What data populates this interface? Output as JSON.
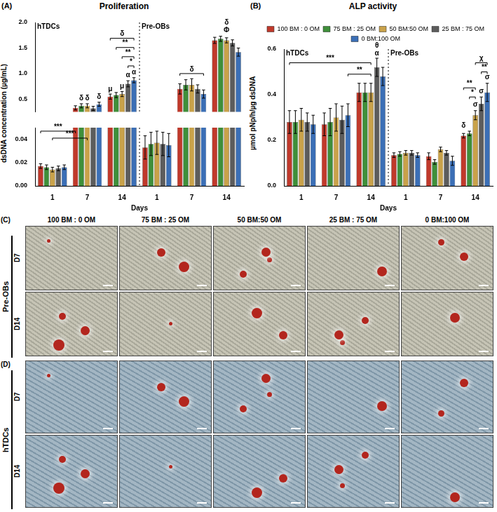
{
  "chart_data": [
    {
      "panel": "(A)",
      "type": "bar",
      "title": "Proliferation",
      "y_label": "dsDNA concentration (µg/mL)",
      "x_label": "Days",
      "groups": [
        "hTDCs",
        "Pre-OBs"
      ],
      "categories": [
        "1",
        "7",
        "14",
        "1",
        "7",
        "14"
      ],
      "y_segments": [
        {
          "ylim": [
            0.25,
            2.0
          ],
          "yticks": [
            0.5,
            {
              "value": 1,
              "label": "1.0"
            },
            1.5,
            {
              "value": 2,
              "label": "2.0"
            }
          ]
        },
        {
          "ylim": [
            0,
            0.05
          ],
          "yticks": [
            {
              "value": 0,
              "label": "0.00"
            },
            0.02,
            0.04
          ]
        }
      ],
      "series": [
        {
          "color": "#c0392b",
          "values": [
            0.017,
            0.33,
            0.55,
            0.033,
            0.7,
            1.65
          ],
          "errors": [
            0.002,
            0.04,
            0.05,
            0.01,
            0.1,
            0.06
          ]
        },
        {
          "color": "#3f8f3a",
          "values": [
            0.016,
            0.37,
            0.58,
            0.036,
            0.78,
            1.68
          ],
          "errors": [
            0.002,
            0.04,
            0.05,
            0.01,
            0.1,
            0.05
          ]
        },
        {
          "color": "#c9a24a",
          "values": [
            0.014,
            0.37,
            0.6,
            0.037,
            0.78,
            1.65
          ],
          "errors": [
            0.002,
            0.04,
            0.05,
            0.01,
            0.12,
            0.05
          ]
        },
        {
          "color": "#5c5c5c",
          "values": [
            0.015,
            0.32,
            0.8,
            0.036,
            0.7,
            1.6
          ],
          "errors": [
            0.002,
            0.04,
            0.06,
            0.01,
            0.08,
            0.06
          ]
        },
        {
          "color": "#3b6fb6",
          "values": [
            0.016,
            0.4,
            0.87,
            0.035,
            0.6,
            1.42
          ],
          "errors": [
            0.002,
            0.04,
            0.05,
            0.01,
            0.08,
            0.08
          ]
        }
      ],
      "annotations": [
        {
          "category": 1,
          "series": 1,
          "y": 0.45,
          "text": "δ"
        },
        {
          "category": 1,
          "series": 2,
          "y": 0.45,
          "text": "δ"
        },
        {
          "category": 1,
          "series": 4,
          "y": 0.48,
          "text": "δ"
        },
        {
          "category": 2,
          "series": 0,
          "y": 0.63,
          "text": "μ"
        },
        {
          "category": 2,
          "series": 2,
          "y": 0.68,
          "text": "μ"
        },
        {
          "category": 2,
          "series": 3,
          "y": 0.9,
          "text": "α"
        },
        {
          "category": 2,
          "series": 4,
          "y": 0.96,
          "text": "α"
        },
        {
          "category": 5,
          "series": 2,
          "y": 1.78,
          "text": "Φ"
        },
        {
          "category": 5,
          "series": 2,
          "y": 1.93,
          "text": "δ"
        }
      ],
      "brackets": [
        {
          "from": [
            2,
            3
          ],
          "to": [
            2,
            4
          ],
          "y": 1.15,
          "text": "*"
        },
        {
          "from": [
            2,
            2
          ],
          "to": [
            2,
            4
          ],
          "y": 1.33,
          "text": "**"
        },
        {
          "from": [
            2,
            1
          ],
          "to": [
            2,
            4
          ],
          "y": 1.51,
          "text": "**"
        },
        {
          "from": [
            2,
            0
          ],
          "to": [
            2,
            4
          ],
          "y": 1.69,
          "text": "δ"
        },
        {
          "from": [
            4,
            0
          ],
          "to": [
            4,
            4
          ],
          "y": 1.0,
          "text": "δ"
        },
        {
          "from": [
            0,
            0
          ],
          "to": [
            1,
            0
          ],
          "y": 0.047,
          "text": "***"
        },
        {
          "from": [
            0,
            2
          ],
          "to": [
            1,
            2
          ],
          "y": 0.041,
          "text": "***"
        }
      ]
    },
    {
      "panel": "(B)",
      "type": "bar",
      "title": "ALP activity",
      "y_label": "µmol pNp/h/µg dsDNA",
      "x_label": "Days",
      "groups": [
        "hTDCs",
        "Pre-OBs"
      ],
      "categories": [
        "1",
        "7",
        "14",
        "1",
        "7",
        "14"
      ],
      "ylim": [
        0,
        0.6
      ],
      "yticks": [
        {
          "value": 0,
          "label": "0.0"
        },
        0.2,
        0.4,
        0.6
      ],
      "legend": "top",
      "series": [
        {
          "name": "100 BM : 0 OM",
          "color": "#c0392b",
          "values": [
            0.28,
            0.27,
            0.41,
            0.135,
            0.13,
            0.22
          ],
          "errors": [
            0.05,
            0.05,
            0.04,
            0.01,
            0.015,
            0.01
          ]
        },
        {
          "name": "75 BM : 25 OM",
          "color": "#3f8f3a",
          "values": [
            0.28,
            0.28,
            0.41,
            0.14,
            0.105,
            0.23
          ],
          "errors": [
            0.05,
            0.06,
            0.04,
            0.01,
            0.01,
            0.01
          ]
        },
        {
          "name": "50 BM:50 OM",
          "color": "#c9a24a",
          "values": [
            0.29,
            0.3,
            0.41,
            0.145,
            0.16,
            0.31
          ],
          "errors": [
            0.05,
            0.06,
            0.04,
            0.01,
            0.01,
            0.02
          ]
        },
        {
          "name": "25 BM : 75 OM",
          "color": "#5c5c5c",
          "values": [
            0.28,
            0.29,
            0.52,
            0.145,
            0.145,
            0.36
          ],
          "errors": [
            0.04,
            0.06,
            0.04,
            0.01,
            0.01,
            0.03
          ]
        },
        {
          "name": "0 BM:100 OM",
          "color": "#3b6fb6",
          "values": [
            0.27,
            0.31,
            0.48,
            0.135,
            0.11,
            0.41
          ],
          "errors": [
            0.04,
            0.05,
            0.04,
            0.01,
            0.02,
            0.04
          ]
        }
      ],
      "annotations": [
        {
          "category": 2,
          "series": 3,
          "y": 0.565,
          "text": "α"
        },
        {
          "category": 2,
          "series": 3,
          "y": 0.6,
          "text": "θ"
        },
        {
          "category": 5,
          "series": 0,
          "y": 0.25,
          "text": "δ"
        },
        {
          "category": 5,
          "series": 2,
          "y": 0.34,
          "text": "σ"
        },
        {
          "category": 5,
          "series": 3,
          "y": 0.4,
          "text": "σ"
        },
        {
          "category": 5,
          "series": 4,
          "y": 0.46,
          "text": "σ"
        }
      ],
      "brackets": [
        {
          "from": [
            0,
            0
          ],
          "to": [
            2,
            2
          ],
          "y": 0.54,
          "text": "***"
        },
        {
          "from": [
            1,
            4
          ],
          "to": [
            2,
            2
          ],
          "y": 0.49,
          "text": "**"
        },
        {
          "from": [
            5,
            1
          ],
          "to": [
            5,
            2
          ],
          "y": 0.39,
          "text": "*"
        },
        {
          "from": [
            5,
            0
          ],
          "to": [
            5,
            2
          ],
          "y": 0.43,
          "text": "**"
        },
        {
          "from": [
            5,
            3
          ],
          "to": [
            5,
            4
          ],
          "y": 0.5,
          "text": "**"
        },
        {
          "from": [
            5,
            2
          ],
          "to": [
            5,
            4
          ],
          "y": 0.54,
          "text": "χ"
        }
      ]
    }
  ],
  "micrograph_panels": [
    {
      "panel": "(C)",
      "cells": "Pre-OBs",
      "columns": [
        "100 BM : 0 OM",
        "75 BM : 25 OM",
        "50 BM:50 OM",
        "25 BM : 75 OM",
        "0 BM:100 OM"
      ],
      "rows": [
        "D7",
        "D14"
      ]
    },
    {
      "panel": "(D)",
      "cells": "hTDCs",
      "rows": [
        "D7",
        "D14"
      ]
    }
  ]
}
